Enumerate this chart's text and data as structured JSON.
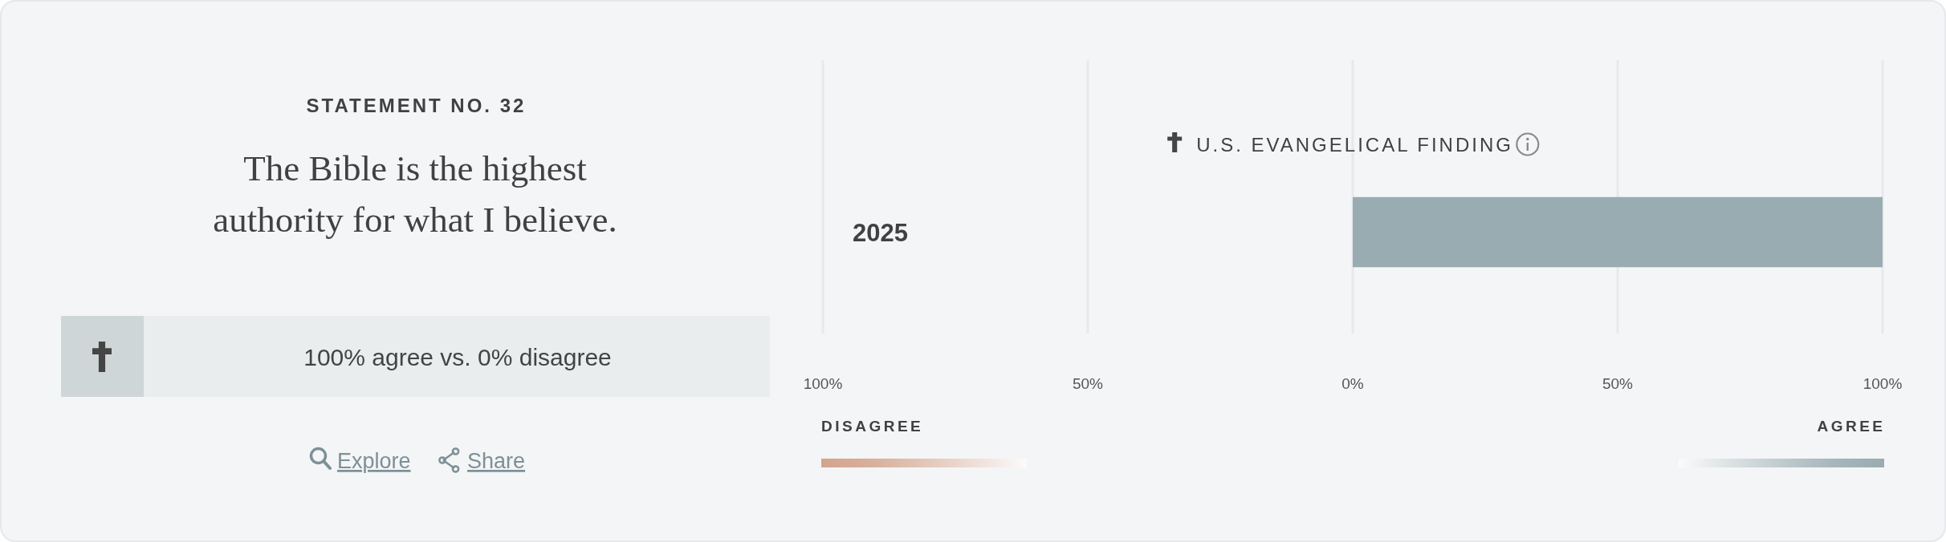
{
  "chart_data": [
    {
      "type": "other",
      "subtitle": "STATEMENT NO. 32",
      "title": "The Bible is the highest authority for what I believe.",
      "annotations": [
        "100% agree vs. 0% disagree",
        "Explore",
        "Share"
      ]
    },
    {
      "type": "bar",
      "orientation": "horizontal",
      "title": "U.S. EVANGELICAL FINDING",
      "categories": [
        "2025"
      ],
      "values": [
        100
      ],
      "color": "#99acb1",
      "xlim": [
        -100,
        100
      ],
      "xticks": [
        {
          "value": -100,
          "label": "100%"
        },
        {
          "value": -50,
          "label": "50%"
        },
        {
          "value": 0,
          "label": "0%"
        },
        {
          "value": 50,
          "label": "50%"
        },
        {
          "value": 100,
          "label": "100%"
        }
      ],
      "grid": "x",
      "annotations": [
        "DISAGREE",
        "AGREE"
      ]
    }
  ]
}
